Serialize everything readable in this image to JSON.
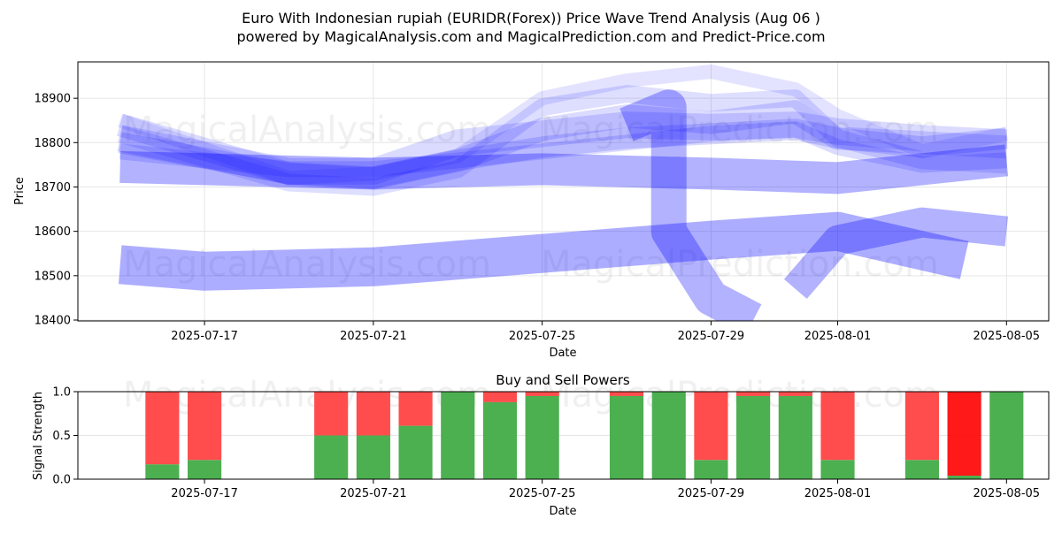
{
  "header": {
    "title_line1": "Euro With Indonesian rupiah (EURIDR(Forex)) Price Wave Trend Analysis (Aug 06 )",
    "title_line2": "powered by MagicalAnalysis.com and MagicalPrediction.com and Predict-Price.com"
  },
  "watermarks": {
    "left": "MagicalAnalysis.com",
    "right": "MagicalPrediction.com"
  },
  "colors": {
    "wave": "#0000ff",
    "buy": "#4caf50",
    "sell": "#ff4d4d",
    "strong_sell": "#ff0000",
    "grid": "#e6e6e6"
  },
  "chart_data": [
    {
      "type": "line",
      "title": "",
      "xlabel": "Date",
      "ylabel": "Price",
      "x_ticks": [
        "2025-07-17",
        "2025-07-21",
        "2025-07-25",
        "2025-07-29",
        "2025-08-01",
        "2025-08-05"
      ],
      "y_ticks": [
        18400,
        18500,
        18600,
        18700,
        18800,
        18900
      ],
      "xlim": [
        "2025-07-14",
        "2025-08-06"
      ],
      "ylim": [
        18398,
        18982
      ],
      "grid": true,
      "series": [
        {
          "x": [
            "2025-07-15",
            "2025-07-19",
            "2025-07-21",
            "2025-07-23",
            "2025-07-25",
            "2025-07-27",
            "2025-07-29",
            "2025-07-31",
            "2025-08-01",
            "2025-08-03",
            "2025-08-05"
          ],
          "y": [
            18810,
            18735,
            18735,
            18800,
            18820,
            18840,
            18835,
            18840,
            18825,
            18810,
            18800
          ]
        },
        {
          "x": [
            "2025-07-15",
            "2025-07-19",
            "2025-07-21",
            "2025-07-23",
            "2025-07-25",
            "2025-07-27",
            "2025-07-29",
            "2025-07-31",
            "2025-08-01",
            "2025-08-03",
            "2025-08-05"
          ],
          "y": [
            18840,
            18730,
            18720,
            18760,
            18830,
            18860,
            18845,
            18870,
            18810,
            18800,
            18790
          ]
        },
        {
          "x": [
            "2025-07-15",
            "2025-07-19",
            "2025-07-21",
            "2025-07-23",
            "2025-07-25",
            "2025-07-27",
            "2025-07-29",
            "2025-07-31",
            "2025-08-01",
            "2025-08-03",
            "2025-08-05"
          ],
          "y": [
            18820,
            18710,
            18700,
            18740,
            18880,
            18910,
            18890,
            18900,
            18810,
            18760,
            18750
          ]
        },
        {
          "x": [
            "2025-07-15",
            "2025-07-19",
            "2025-07-21",
            "2025-07-23",
            "2025-07-25",
            "2025-07-27",
            "2025-07-29",
            "2025-07-31",
            "2025-08-01",
            "2025-08-03",
            "2025-08-05"
          ],
          "y": [
            18800,
            18730,
            18720,
            18760,
            18790,
            18810,
            18820,
            18830,
            18810,
            18790,
            18810
          ]
        },
        {
          "x": [
            "2025-07-15",
            "2025-07-19",
            "2025-07-21",
            "2025-07-23",
            "2025-07-25",
            "2025-07-27",
            "2025-07-29",
            "2025-07-31",
            "2025-08-01",
            "2025-08-03",
            "2025-08-05"
          ],
          "y": [
            18780,
            18740,
            18740,
            18760,
            18780,
            18800,
            18820,
            18830,
            18790,
            18750,
            18760
          ]
        },
        {
          "x": [
            "2025-07-15",
            "2025-07-19",
            "2025-07-21",
            "2025-07-23",
            "2025-07-25",
            "2025-07-27",
            "2025-07-29",
            "2025-07-31",
            "2025-08-01",
            "2025-08-03",
            "2025-08-05"
          ],
          "y": [
            18850,
            18720,
            18730,
            18770,
            18900,
            18940,
            18960,
            18920,
            18860,
            18780,
            18820
          ]
        },
        {
          "x": [
            "2025-07-15",
            "2025-07-21",
            "2025-07-25",
            "2025-07-29",
            "2025-08-01",
            "2025-08-05"
          ],
          "y": [
            18745,
            18730,
            18740,
            18730,
            18720,
            18760
          ]
        },
        {
          "x": [
            "2025-07-15",
            "2025-07-17",
            "2025-07-21",
            "2025-07-25",
            "2025-07-29",
            "2025-08-01",
            "2025-08-04"
          ],
          "y": [
            18525,
            18510,
            18520,
            18550,
            18580,
            18600,
            18535
          ]
        },
        {
          "x": [
            "2025-07-31",
            "2025-08-01",
            "2025-08-03",
            "2025-08-05"
          ],
          "y": [
            18470,
            18580,
            18620,
            18600
          ]
        },
        {
          "x": [
            "2025-07-27",
            "2025-07-28",
            "2025-07-28",
            "2025-07-29",
            "2025-07-30"
          ],
          "y": [
            18840,
            18880,
            18600,
            18450,
            18400
          ]
        }
      ]
    },
    {
      "type": "bar",
      "title": "Buy and Sell Powers",
      "xlabel": "Date",
      "ylabel": "Signal Strength",
      "x_ticks": [
        "2025-07-17",
        "2025-07-21",
        "2025-07-25",
        "2025-07-29",
        "2025-08-01",
        "2025-08-05"
      ],
      "y_ticks": [
        "0.0",
        "0.5",
        "1.0"
      ],
      "ylim": [
        0,
        1
      ],
      "grid": true,
      "categories": [
        "2025-07-16",
        "2025-07-17",
        "2025-07-20",
        "2025-07-21",
        "2025-07-22",
        "2025-07-23",
        "2025-07-24",
        "2025-07-25",
        "2025-07-27",
        "2025-07-28",
        "2025-07-29",
        "2025-07-30",
        "2025-07-31",
        "2025-08-01",
        "2025-08-03",
        "2025-08-04",
        "2025-08-05"
      ],
      "series": [
        {
          "values": [
            0.17,
            0.22,
            0.5,
            0.5,
            0.61,
            1.0,
            0.88,
            0.95,
            0.95,
            1.0,
            0.22,
            0.95,
            0.95,
            0.22,
            0.22,
            0.04,
            1.0
          ]
        },
        {
          "values": [
            0.83,
            0.78,
            0.5,
            0.5,
            0.39,
            0.0,
            0.12,
            0.05,
            0.05,
            0.0,
            0.78,
            0.05,
            0.05,
            0.78,
            0.78,
            0.96,
            0.0
          ]
        }
      ]
    }
  ]
}
